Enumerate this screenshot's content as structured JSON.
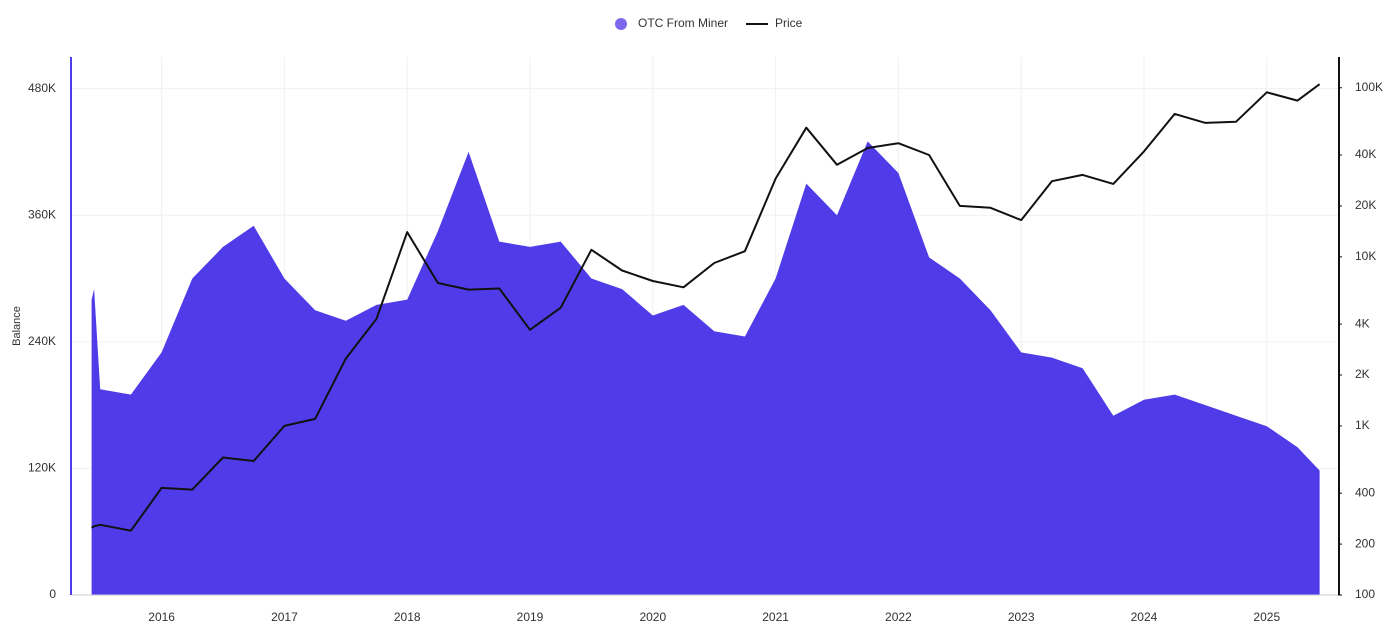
{
  "chart_data": {
    "type": "area",
    "y_label": "Balance",
    "x": [
      2015.43,
      2015.45,
      2015.5,
      2015.75,
      2016.0,
      2016.25,
      2016.5,
      2016.75,
      2017.0,
      2017.25,
      2017.5,
      2017.75,
      2018.0,
      2018.25,
      2018.5,
      2018.75,
      2019.0,
      2019.25,
      2019.5,
      2019.75,
      2020.0,
      2020.25,
      2020.5,
      2020.75,
      2021.0,
      2021.25,
      2021.5,
      2021.75,
      2022.0,
      2022.25,
      2022.5,
      2022.75,
      2023.0,
      2023.25,
      2023.5,
      2023.75,
      2024.0,
      2024.25,
      2024.5,
      2024.75,
      2025.0,
      2025.25,
      2025.43
    ],
    "series": [
      {
        "name": "OTC From Miner",
        "color": "#4f3ce8",
        "legend_color": "#7b68ee",
        "values": [
          280000,
          290000,
          195000,
          190000,
          230000,
          300000,
          330000,
          350000,
          300000,
          270000,
          260000,
          275000,
          280000,
          345000,
          420000,
          335000,
          330000,
          335000,
          300000,
          290000,
          265000,
          275000,
          250000,
          245000,
          300000,
          390000,
          360000,
          430000,
          400000,
          320000,
          300000,
          270000,
          230000,
          225000,
          215000,
          170000,
          185000,
          190000,
          180000,
          170000,
          160000,
          140000,
          118000
        ]
      },
      {
        "name": "Price",
        "color": "#111111",
        "axis": "y2",
        "line": true,
        "values": [
          250,
          255,
          260,
          240,
          430,
          420,
          650,
          620,
          1000,
          1100,
          2500,
          4300,
          14000,
          7000,
          6400,
          6500,
          3700,
          5000,
          11000,
          8300,
          7200,
          6600,
          9200,
          10800,
          29000,
          58000,
          35000,
          44000,
          47000,
          40000,
          20000,
          19500,
          16500,
          28000,
          30500,
          27000,
          42000,
          70000,
          62000,
          63000,
          94000,
          84000,
          105000
        ]
      }
    ],
    "xlim": [
      2015.27,
      2025.58
    ],
    "xticks": [
      2016,
      2017,
      2018,
      2019,
      2020,
      2021,
      2022,
      2023,
      2024,
      2025
    ],
    "ylim": [
      0,
      510000
    ],
    "yticks": [
      0,
      {
        "value": 120000,
        "label": "120K"
      },
      {
        "value": 240000,
        "label": "240K"
      },
      {
        "value": 360000,
        "label": "360K"
      },
      {
        "value": 480000,
        "label": "480K"
      }
    ],
    "y2lim": [
      100,
      152000
    ],
    "y2log": true,
    "y2ticks": [
      100,
      200,
      400,
      {
        "value": 1000,
        "label": "1K"
      },
      {
        "value": 2000,
        "label": "2K"
      },
      {
        "value": 4000,
        "label": "4K"
      },
      {
        "value": 10000,
        "label": "10K"
      },
      {
        "value": 20000,
        "label": "20K"
      },
      {
        "value": 40000,
        "label": "40K"
      },
      {
        "value": 100000,
        "label": "100K"
      }
    ],
    "grid": true
  }
}
